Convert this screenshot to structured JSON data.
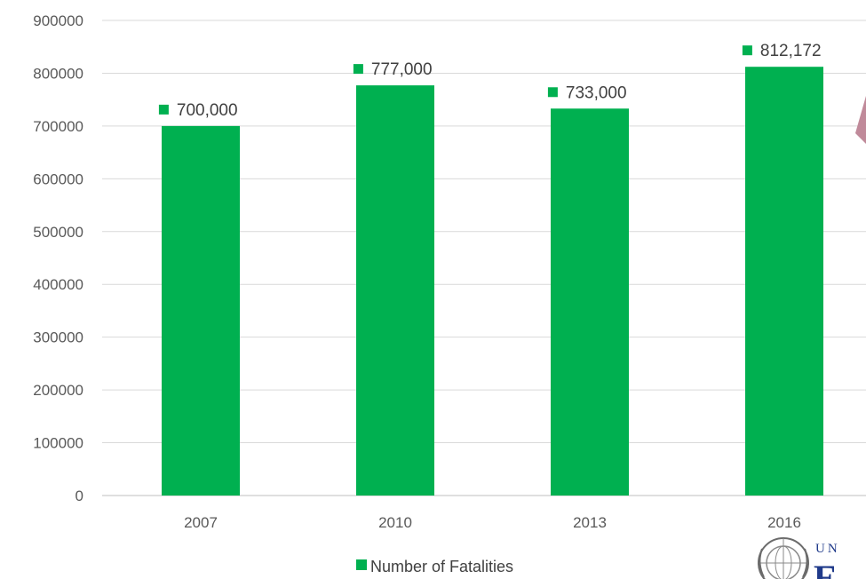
{
  "chart_data": {
    "type": "bar",
    "categories": [
      "2007",
      "2010",
      "2013",
      "2016"
    ],
    "series": [
      {
        "name": "Number of Fatalities",
        "values": [
          700000,
          777000,
          733000,
          812172
        ],
        "labels": [
          "700,000",
          "777,000",
          "733,000",
          "812,172"
        ],
        "color": "#00b050"
      }
    ],
    "y_ticks": [
      "0",
      "100000",
      "200000",
      "300000",
      "400000",
      "500000",
      "600000",
      "700000",
      "800000",
      "900000"
    ],
    "ylim": [
      0,
      900000
    ],
    "grid": true,
    "legend_position": "bottom"
  },
  "logo": {
    "text_top": "UN",
    "text_big": "E",
    "color": "#1f3a8a"
  },
  "decor": {
    "arrow_color": "#c08a9a"
  }
}
